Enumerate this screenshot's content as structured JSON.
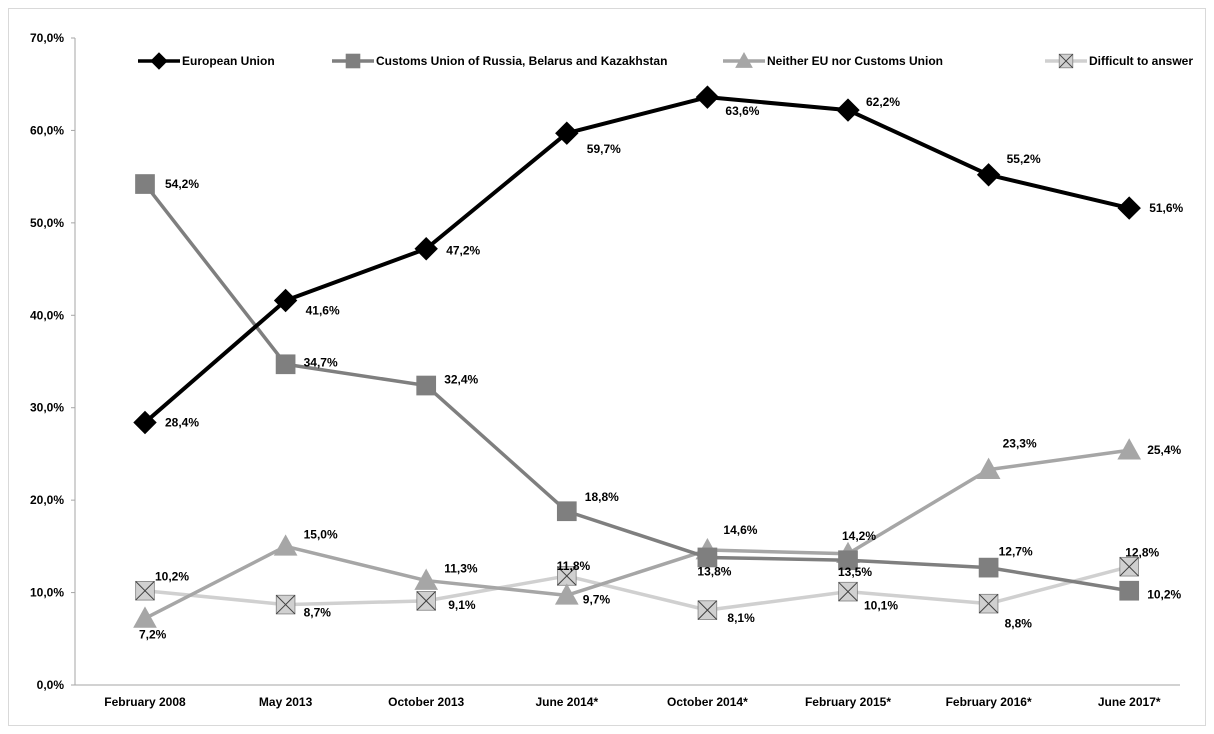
{
  "chart_data": {
    "type": "line",
    "title": "",
    "xlabel": "",
    "ylabel": "",
    "categories": [
      "February 2008",
      "May 2013",
      "October 2013",
      "June 2014*",
      "October 2014*",
      "February 2015*",
      "February 2016*",
      "June 2017*"
    ],
    "y_ticks": [
      "0,0%",
      "10,0%",
      "20,0%",
      "30,0%",
      "40,0%",
      "50,0%",
      "60,0%",
      "70,0%"
    ],
    "ylim": [
      0,
      70
    ],
    "grid": false,
    "legend_position": "top",
    "series": [
      {
        "name": "European Union",
        "color": "#000000",
        "marker": "diamond",
        "values": [
          28.4,
          41.6,
          47.2,
          59.7,
          63.6,
          62.2,
          55.2,
          51.6
        ],
        "labels": [
          "28,4%",
          "41,6%",
          "47,2%",
          "59,7%",
          "63,6%",
          "62,2%",
          "55,2%",
          "51,6%"
        ]
      },
      {
        "name": "Customs Union of Russia, Belarus and Kazakhstan",
        "color": "#7f7f7f",
        "marker": "square",
        "values": [
          54.2,
          34.7,
          32.4,
          18.8,
          13.8,
          13.5,
          12.7,
          10.2
        ],
        "labels": [
          "54,2%",
          "34,7%",
          "32,4%",
          "18,8%",
          "13,8%",
          "13,5%",
          "12,7%",
          "10,2%"
        ]
      },
      {
        "name": "Neither EU nor Customs Union",
        "color": "#a6a6a6",
        "marker": "triangle",
        "values": [
          7.2,
          15.0,
          11.3,
          9.7,
          14.6,
          14.2,
          23.3,
          25.4
        ],
        "labels": [
          "7,2%",
          "15,0%",
          "11,3%",
          "9,7%",
          "14,6%",
          "14,2%",
          "23,3%",
          "25,4%"
        ]
      },
      {
        "name": "Difficult to answer",
        "color": "#d0d0d0",
        "marker": "x",
        "values": [
          10.2,
          8.7,
          9.1,
          11.8,
          8.1,
          10.1,
          8.8,
          12.8
        ],
        "labels": [
          "10,2%",
          "8,7%",
          "9,1%",
          "11,8%",
          "8,1%",
          "10,1%",
          "8,8%",
          "12,8%"
        ]
      }
    ]
  }
}
